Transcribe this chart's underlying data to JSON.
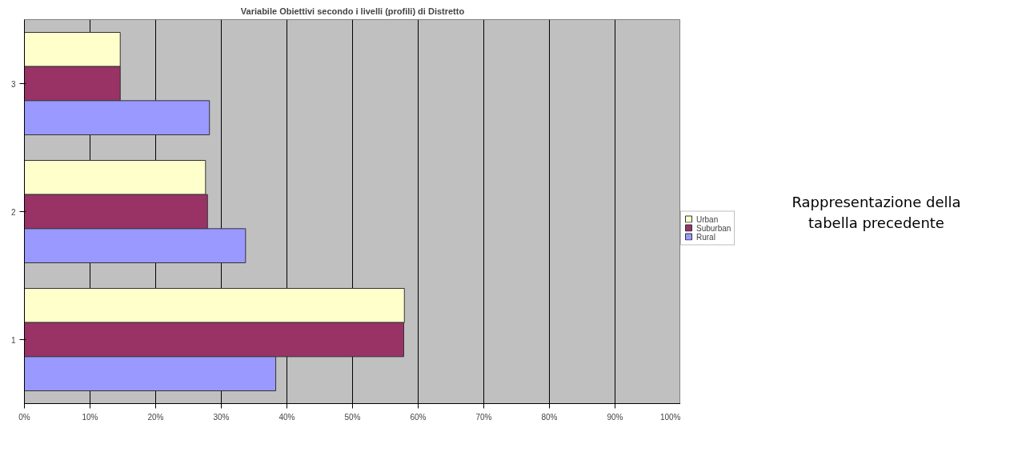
{
  "chart_data": {
    "type": "bar",
    "orientation": "horizontal",
    "title": "Variabile Obiettivi secondo i livelli (profili) di Distretto",
    "categories": [
      "3",
      "2",
      "1"
    ],
    "series": [
      {
        "name": "Urban",
        "color": "#ffffcc",
        "values": [
          14.6,
          27.6,
          57.9
        ]
      },
      {
        "name": "Suburban",
        "color": "#993366",
        "values": [
          14.6,
          27.9,
          57.8
        ]
      },
      {
        "name": "Rural",
        "color": "#9999ff",
        "values": [
          28.2,
          33.7,
          38.3
        ]
      }
    ],
    "xlim": [
      0,
      100
    ],
    "xticks": [
      {
        "value": 0,
        "label": "0%"
      },
      {
        "value": 10,
        "label": "10%"
      },
      {
        "value": 20,
        "label": "20%"
      },
      {
        "value": 30,
        "label": "30%"
      },
      {
        "value": 40,
        "label": "40%"
      },
      {
        "value": 50,
        "label": "50%"
      },
      {
        "value": 60,
        "label": "60%"
      },
      {
        "value": 70,
        "label": "70%"
      },
      {
        "value": 80,
        "label": "80%"
      },
      {
        "value": 90,
        "label": "90%"
      },
      {
        "value": 100,
        "label": "100%"
      }
    ],
    "grid": "x",
    "legend": "right",
    "annotations": [
      "Rappresentazione della tabella precedente"
    ]
  }
}
